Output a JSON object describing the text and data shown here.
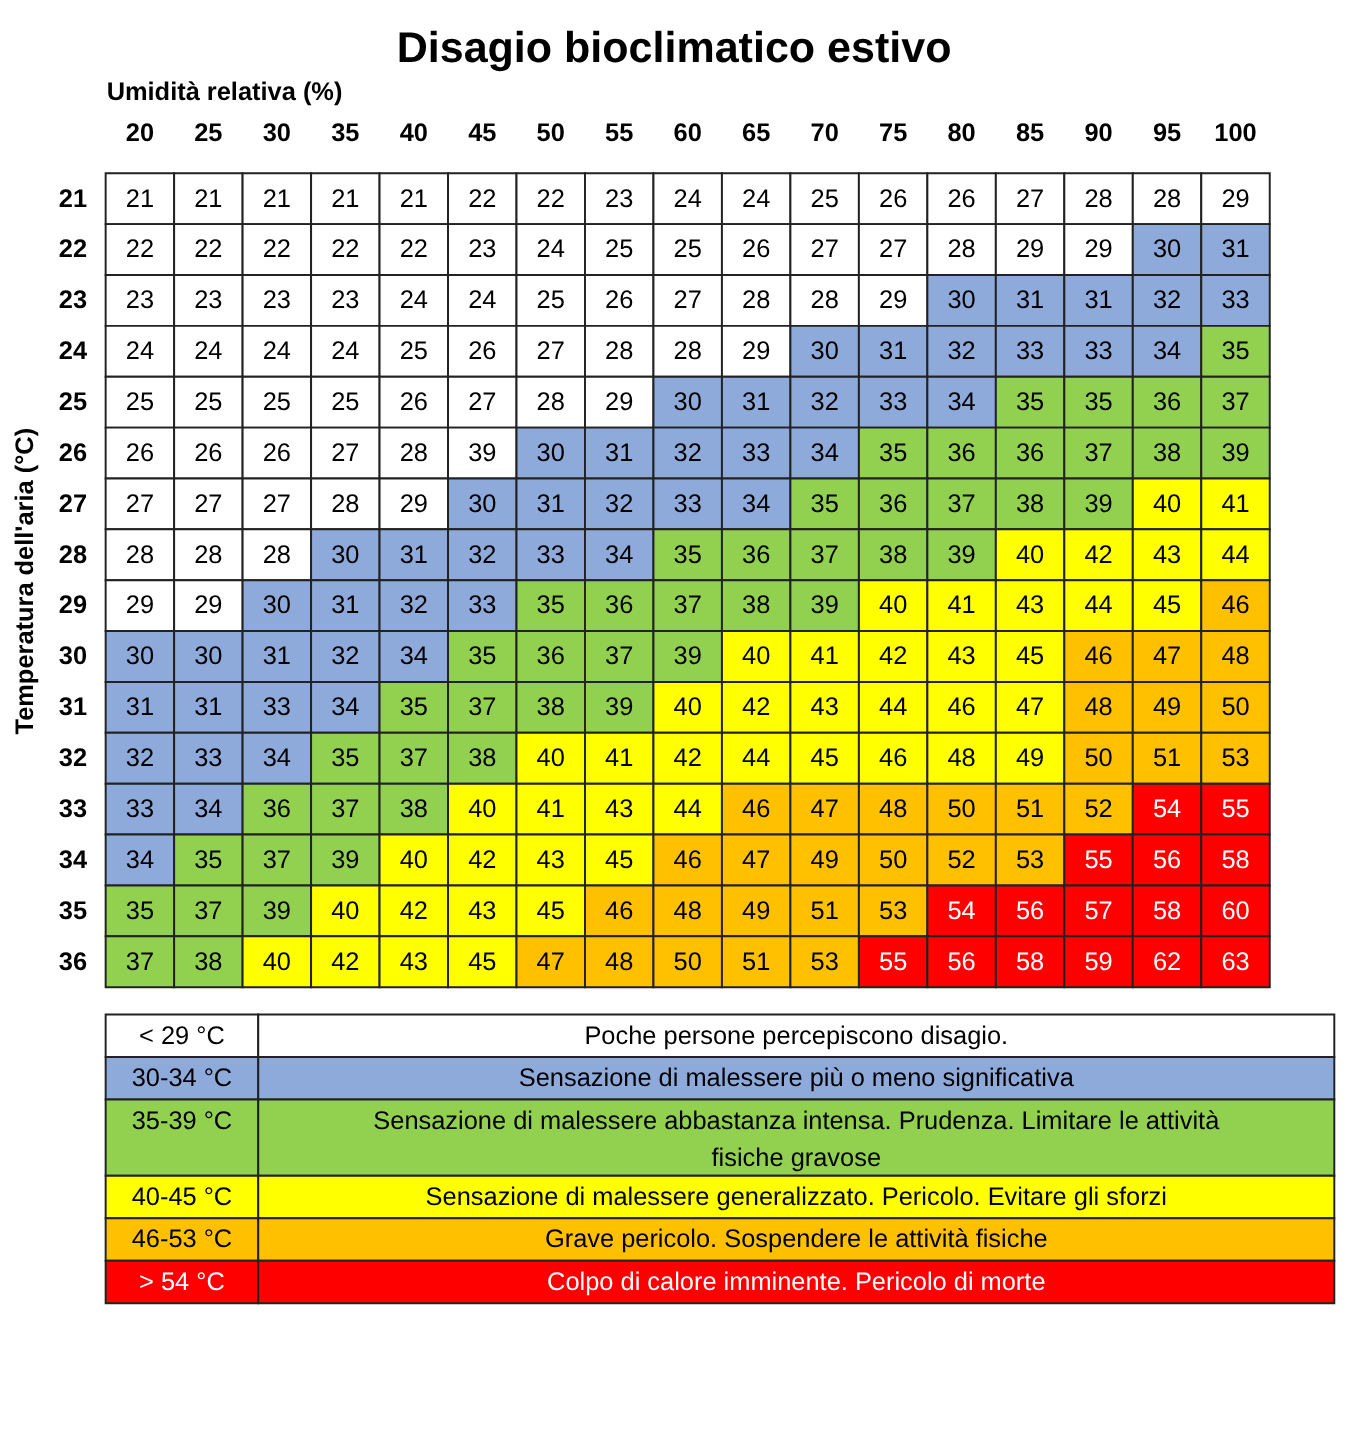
{
  "chart_data": [
    {
      "type": "heatmap",
      "title": "Disagio bioclimatico estivo",
      "xlabel": "Umidità relativa (%)",
      "ylabel": "Temperatura dell'aria (°C)",
      "data_labels": true,
      "categories": [
        "20",
        "25",
        "30",
        "35",
        "40",
        "45",
        "50",
        "55",
        "60",
        "65",
        "70",
        "75",
        "80",
        "85",
        "90",
        "95",
        "100"
      ],
      "y_categories": [
        "21",
        "22",
        "23",
        "24",
        "25",
        "26",
        "27",
        "28",
        "29",
        "30",
        "31",
        "32",
        "33",
        "34",
        "35",
        "36"
      ],
      "cells": [
        [
          21,
          21,
          21,
          21,
          21,
          22,
          22,
          23,
          24,
          24,
          25,
          26,
          26,
          27,
          28,
          28,
          29
        ],
        [
          22,
          22,
          22,
          22,
          22,
          23,
          24,
          25,
          25,
          26,
          27,
          27,
          28,
          29,
          29,
          30,
          31
        ],
        [
          23,
          23,
          23,
          23,
          24,
          24,
          25,
          26,
          27,
          28,
          28,
          29,
          30,
          31,
          31,
          32,
          33
        ],
        [
          24,
          24,
          24,
          24,
          25,
          26,
          27,
          28,
          28,
          29,
          30,
          31,
          32,
          33,
          33,
          34,
          35
        ],
        [
          25,
          25,
          25,
          25,
          26,
          27,
          28,
          29,
          30,
          31,
          32,
          33,
          34,
          35,
          35,
          36,
          37
        ],
        [
          26,
          26,
          26,
          27,
          28,
          39,
          30,
          31,
          32,
          33,
          34,
          35,
          36,
          36,
          37,
          38,
          39
        ],
        [
          27,
          27,
          27,
          28,
          29,
          30,
          31,
          32,
          33,
          34,
          35,
          36,
          37,
          38,
          39,
          40,
          41
        ],
        [
          28,
          28,
          28,
          30,
          31,
          32,
          33,
          34,
          35,
          36,
          37,
          38,
          39,
          40,
          42,
          43,
          44
        ],
        [
          29,
          29,
          30,
          31,
          32,
          33,
          35,
          36,
          37,
          38,
          39,
          40,
          41,
          43,
          44,
          45,
          46
        ],
        [
          30,
          30,
          31,
          32,
          34,
          35,
          36,
          37,
          39,
          40,
          41,
          42,
          43,
          45,
          46,
          47,
          48
        ],
        [
          31,
          31,
          33,
          34,
          35,
          37,
          38,
          39,
          40,
          42,
          43,
          44,
          46,
          47,
          48,
          49,
          50
        ],
        [
          32,
          33,
          34,
          35,
          37,
          38,
          40,
          41,
          42,
          44,
          45,
          46,
          48,
          49,
          50,
          51,
          53
        ],
        [
          33,
          34,
          36,
          37,
          38,
          40,
          41,
          43,
          44,
          46,
          47,
          48,
          50,
          51,
          52,
          54,
          55
        ],
        [
          34,
          35,
          37,
          39,
          40,
          42,
          43,
          45,
          46,
          47,
          49,
          50,
          52,
          53,
          55,
          56,
          58
        ],
        [
          35,
          37,
          39,
          40,
          42,
          43,
          45,
          46,
          48,
          49,
          51,
          53,
          54,
          56,
          57,
          58,
          60
        ],
        [
          37,
          38,
          40,
          42,
          43,
          45,
          47,
          48,
          50,
          51,
          53,
          55,
          56,
          58,
          59,
          62,
          63
        ]
      ],
      "colors": [
        [
          "#ffffff",
          "#ffffff",
          "#ffffff",
          "#ffffff",
          "#ffffff",
          "#ffffff",
          "#ffffff",
          "#ffffff",
          "#ffffff",
          "#ffffff",
          "#ffffff",
          "#ffffff",
          "#ffffff",
          "#ffffff",
          "#ffffff",
          "#ffffff",
          "#ffffff"
        ],
        [
          "#ffffff",
          "#ffffff",
          "#ffffff",
          "#ffffff",
          "#ffffff",
          "#ffffff",
          "#ffffff",
          "#ffffff",
          "#ffffff",
          "#ffffff",
          "#ffffff",
          "#ffffff",
          "#ffffff",
          "#ffffff",
          "#ffffff",
          "#8eaadb",
          "#8eaadb"
        ],
        [
          "#ffffff",
          "#ffffff",
          "#ffffff",
          "#ffffff",
          "#ffffff",
          "#ffffff",
          "#ffffff",
          "#ffffff",
          "#ffffff",
          "#ffffff",
          "#ffffff",
          "#ffffff",
          "#8eaadb",
          "#8eaadb",
          "#8eaadb",
          "#8eaadb",
          "#8eaadb"
        ],
        [
          "#ffffff",
          "#ffffff",
          "#ffffff",
          "#ffffff",
          "#ffffff",
          "#ffffff",
          "#ffffff",
          "#ffffff",
          "#ffffff",
          "#ffffff",
          "#8eaadb",
          "#8eaadb",
          "#8eaadb",
          "#8eaadb",
          "#8eaadb",
          "#8eaadb",
          "#92d050"
        ],
        [
          "#ffffff",
          "#ffffff",
          "#ffffff",
          "#ffffff",
          "#ffffff",
          "#ffffff",
          "#ffffff",
          "#ffffff",
          "#8eaadb",
          "#8eaadb",
          "#8eaadb",
          "#8eaadb",
          "#8eaadb",
          "#92d050",
          "#92d050",
          "#92d050",
          "#92d050"
        ],
        [
          "#ffffff",
          "#ffffff",
          "#ffffff",
          "#ffffff",
          "#ffffff",
          "#ffffff",
          "#8eaadb",
          "#8eaadb",
          "#8eaadb",
          "#8eaadb",
          "#8eaadb",
          "#92d050",
          "#92d050",
          "#92d050",
          "#92d050",
          "#92d050",
          "#92d050"
        ],
        [
          "#ffffff",
          "#ffffff",
          "#ffffff",
          "#ffffff",
          "#ffffff",
          "#8eaadb",
          "#8eaadb",
          "#8eaadb",
          "#8eaadb",
          "#8eaadb",
          "#92d050",
          "#92d050",
          "#92d050",
          "#92d050",
          "#92d050",
          "#ffff00",
          "#ffff00"
        ],
        [
          "#ffffff",
          "#ffffff",
          "#ffffff",
          "#8eaadb",
          "#8eaadb",
          "#8eaadb",
          "#8eaadb",
          "#8eaadb",
          "#92d050",
          "#92d050",
          "#92d050",
          "#92d050",
          "#92d050",
          "#ffff00",
          "#ffff00",
          "#ffff00",
          "#ffff00"
        ],
        [
          "#ffffff",
          "#ffffff",
          "#8eaadb",
          "#8eaadb",
          "#8eaadb",
          "#8eaadb",
          "#92d050",
          "#92d050",
          "#92d050",
          "#92d050",
          "#92d050",
          "#ffff00",
          "#ffff00",
          "#ffff00",
          "#ffff00",
          "#ffff00",
          "#ffc000"
        ],
        [
          "#8eaadb",
          "#8eaadb",
          "#8eaadb",
          "#8eaadb",
          "#8eaadb",
          "#92d050",
          "#92d050",
          "#92d050",
          "#92d050",
          "#ffff00",
          "#ffff00",
          "#ffff00",
          "#ffff00",
          "#ffff00",
          "#ffc000",
          "#ffc000",
          "#ffc000"
        ],
        [
          "#8eaadb",
          "#8eaadb",
          "#8eaadb",
          "#8eaadb",
          "#92d050",
          "#92d050",
          "#92d050",
          "#92d050",
          "#ffff00",
          "#ffff00",
          "#ffff00",
          "#ffff00",
          "#ffff00",
          "#ffff00",
          "#ffc000",
          "#ffc000",
          "#ffc000"
        ],
        [
          "#8eaadb",
          "#8eaadb",
          "#8eaadb",
          "#92d050",
          "#92d050",
          "#92d050",
          "#ffff00",
          "#ffff00",
          "#ffff00",
          "#ffff00",
          "#ffff00",
          "#ffff00",
          "#ffff00",
          "#ffff00",
          "#ffc000",
          "#ffc000",
          "#ffc000"
        ],
        [
          "#8eaadb",
          "#8eaadb",
          "#92d050",
          "#92d050",
          "#92d050",
          "#ffff00",
          "#ffff00",
          "#ffff00",
          "#ffff00",
          "#ffc000",
          "#ffc000",
          "#ffc000",
          "#ffc000",
          "#ffc000",
          "#ffc000",
          "#ff0000",
          "#ff0000"
        ],
        [
          "#8eaadb",
          "#92d050",
          "#92d050",
          "#92d050",
          "#ffff00",
          "#ffff00",
          "#ffff00",
          "#ffff00",
          "#ffc000",
          "#ffc000",
          "#ffc000",
          "#ffc000",
          "#ffc000",
          "#ffc000",
          "#ff0000",
          "#ff0000",
          "#ff0000"
        ],
        [
          "#92d050",
          "#92d050",
          "#92d050",
          "#ffff00",
          "#ffff00",
          "#ffff00",
          "#ffff00",
          "#ffc000",
          "#ffc000",
          "#ffc000",
          "#ffc000",
          "#ffc000",
          "#ff0000",
          "#ff0000",
          "#ff0000",
          "#ff0000",
          "#ff0000"
        ],
        [
          "#92d050",
          "#92d050",
          "#ffff00",
          "#ffff00",
          "#ffff00",
          "#ffff00",
          "#ffc000",
          "#ffc000",
          "#ffc000",
          "#ffc000",
          "#ffc000",
          "#ff0000",
          "#ff0000",
          "#ff0000",
          "#ff0000",
          "#ff0000",
          "#ff0000"
        ]
      ]
    },
    {
      "type": "other",
      "categories": [
        "< 29 °C",
        "30-34 °C",
        "35-39 °C",
        "40-45 °C",
        "46-53 °C",
        "> 54 °C"
      ],
      "annotations": [
        "Poche persone percepiscono disagio.",
        "Sensazione di malessere più o meno significativa",
        "Sensazione di malessere abbastanza intensa. Prudenza.  Limitare le attività fisiche gravose",
        "Sensazione di malessere generalizzato. Pericolo.  Evitare gli sforzi",
        "Grave pericolo.  Sospendere  le attività fisiche",
        "Colpo di calore imminente.  Pericolo di morte"
      ],
      "colors": [
        "#ffffff",
        "#8eaadb",
        "#92d050",
        "#ffff00",
        "#ffc000",
        "#ff0000"
      ]
    }
  ]
}
